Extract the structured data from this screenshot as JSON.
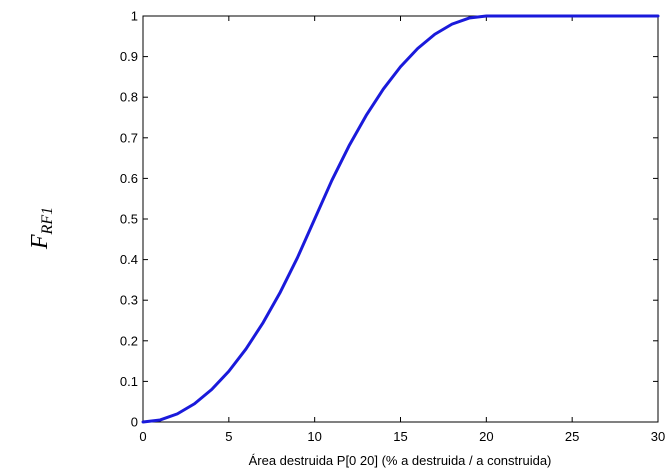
{
  "chart_data": {
    "type": "line",
    "title": "",
    "xlabel": "Área destruida  P[0 20] (%  a destruida / a construida)",
    "ylabel_main": "F",
    "ylabel_sub": "RF1",
    "xlim": [
      0,
      30
    ],
    "ylim": [
      0,
      1
    ],
    "xticks": [
      0,
      5,
      10,
      15,
      20,
      25,
      30
    ],
    "yticks": [
      0,
      0.1,
      0.2,
      0.3,
      0.4,
      0.5,
      0.6,
      0.7,
      0.8,
      0.9,
      1
    ],
    "xtick_labels": [
      "0",
      "5",
      "10",
      "15",
      "20",
      "25",
      "30"
    ],
    "ytick_labels": [
      "0",
      "0.1",
      "0.2",
      "0.3",
      "0.4",
      "0.5",
      "0.6",
      "0.7",
      "0.8",
      "0.9",
      "1"
    ],
    "grid": false,
    "line_color": "#1a1adb",
    "series": [
      {
        "x": [
          0,
          1,
          2,
          3,
          4,
          5,
          6,
          7,
          8,
          9,
          10,
          11,
          12,
          13,
          14,
          15,
          16,
          17,
          18,
          19,
          20,
          21,
          22,
          23,
          24,
          25,
          26,
          27,
          28,
          29,
          30
        ],
        "y": [
          0,
          0.005,
          0.02,
          0.045,
          0.08,
          0.125,
          0.18,
          0.245,
          0.32,
          0.405,
          0.5,
          0.595,
          0.68,
          0.755,
          0.82,
          0.875,
          0.92,
          0.955,
          0.98,
          0.995,
          1,
          1,
          1,
          1,
          1,
          1,
          1,
          1,
          1,
          1,
          1
        ]
      }
    ]
  }
}
